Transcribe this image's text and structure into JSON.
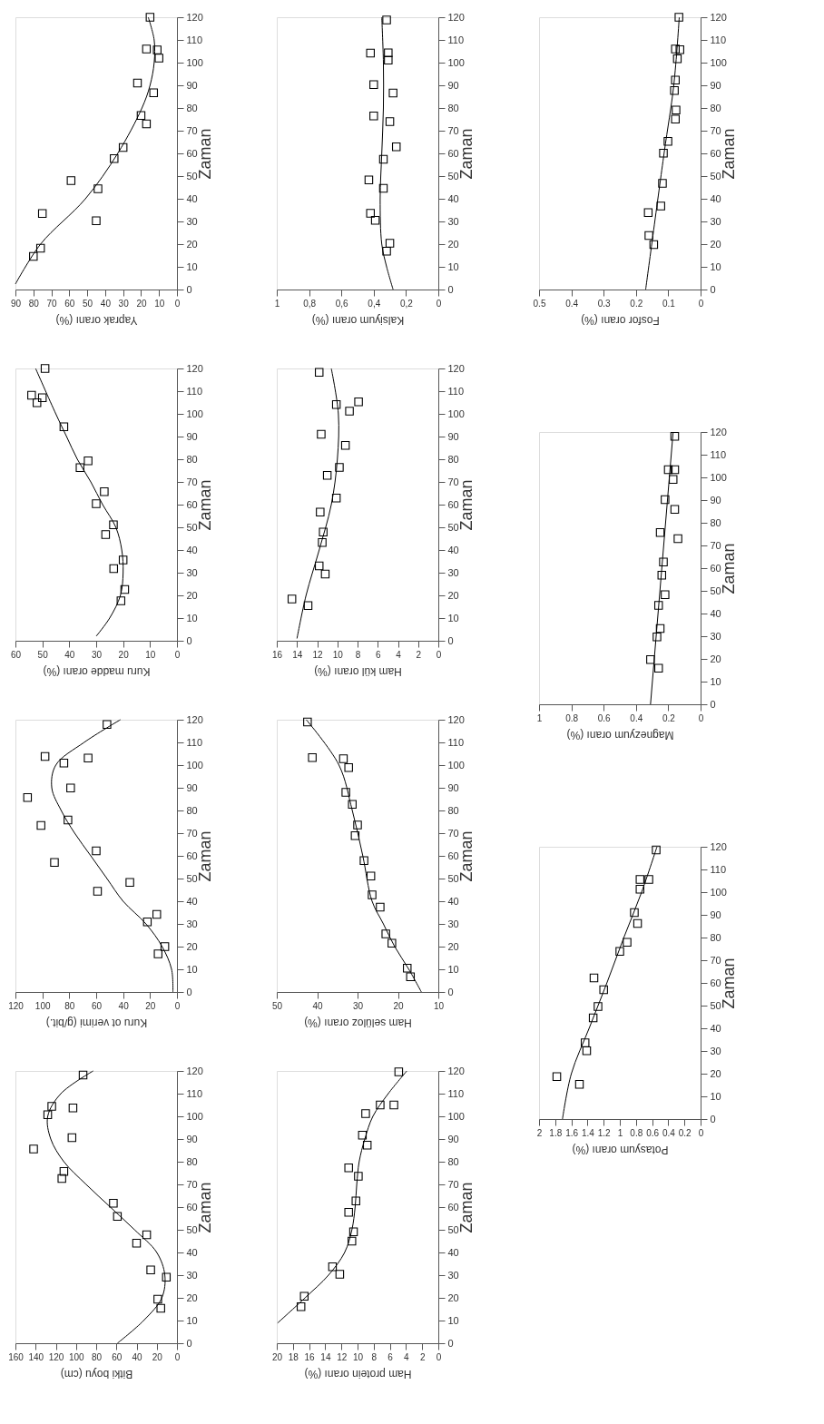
{
  "chart_data": [
    {
      "type": "scatter",
      "ylabel": "Zaman",
      "xlabel": "Yaprak oranı (%)",
      "ylim": [
        0,
        120
      ],
      "yticks": [
        0,
        10,
        20,
        30,
        40,
        50,
        60,
        70,
        80,
        90,
        100,
        110,
        120
      ],
      "xlim": [
        90,
        0
      ],
      "xticks": [
        90,
        80,
        70,
        60,
        50,
        40,
        30,
        20,
        10,
        0
      ],
      "series": [
        {
          "type": "scatter",
          "marker": "square",
          "color": "#000000",
          "values": [
            120,
            106,
            105.6,
            102,
            91,
            86.7,
            76.7,
            73,
            62.6,
            57.7,
            48,
            44.4,
            33.5,
            30.3,
            18.2,
            14.6
          ],
          "x": [
            15,
            17,
            11,
            10,
            22,
            13,
            20,
            17,
            30,
            35,
            59,
            44,
            75,
            45,
            76,
            80
          ]
        },
        {
          "type": "line",
          "color": "#000000",
          "values": [
            2.4,
            20,
            40,
            60,
            80,
            90,
            100,
            110,
            120
          ],
          "x": [
            90,
            76,
            51,
            33,
            19.5,
            15,
            12.7,
            12.7,
            16
          ]
        }
      ]
    },
    {
      "type": "scatter",
      "ylabel": "Zaman",
      "xlabel": "Kuru madde oranı (%)",
      "ylim": [
        0,
        120
      ],
      "yticks": [
        0,
        10,
        20,
        30,
        40,
        50,
        60,
        70,
        80,
        90,
        100,
        110,
        120
      ],
      "xlim": [
        60,
        0
      ],
      "xticks": [
        60,
        50,
        40,
        30,
        20,
        10,
        0
      ],
      "series": [
        {
          "type": "scatter",
          "marker": "square",
          "color": "#000000",
          "values": [
            120,
            108.2,
            104.9,
            107.1,
            94.3,
            79.3,
            76.3,
            65.7,
            60.4,
            51.1,
            46.8,
            35.6,
            31.8,
            22.6,
            17.6
          ],
          "x": [
            49,
            54,
            52,
            50,
            42,
            33,
            36,
            27,
            30,
            23.6,
            26.5,
            20,
            23.5,
            19.4,
            20.8
          ]
        },
        {
          "type": "line",
          "color": "#000000",
          "values": [
            2,
            10,
            20,
            30,
            40,
            50,
            60,
            70,
            80,
            90,
            100,
            120
          ],
          "x": [
            30,
            25,
            21,
            20,
            20.5,
            22.7,
            27.6,
            32,
            37,
            41,
            45,
            52.5
          ]
        }
      ]
    },
    {
      "type": "scatter",
      "ylabel": "Zaman",
      "xlabel": "Kuru ot verimi (g/bit.)",
      "ylim": [
        0,
        120
      ],
      "yticks": [
        0,
        10,
        20,
        30,
        40,
        50,
        60,
        70,
        80,
        90,
        100,
        110,
        120
      ],
      "xlim": [
        120,
        0
      ],
      "xticks": [
        120,
        100,
        80,
        60,
        40,
        20,
        0
      ],
      "series": [
        {
          "type": "scatter",
          "marker": "square",
          "color": "#000000",
          "values": [
            117.9,
            103.8,
            103.1,
            100.9,
            89.9,
            85.7,
            75.8,
            73.4,
            62.2,
            57.1,
            48.3,
            44.4,
            34.2,
            30.9,
            20,
            16.8
          ],
          "x": [
            52,
            98,
            66,
            84,
            79,
            111,
            81,
            101,
            60,
            91,
            35,
            59,
            15,
            22,
            9,
            14
          ]
        },
        {
          "type": "line",
          "color": "#000000",
          "values": [
            0,
            10,
            20,
            30,
            40,
            50,
            60,
            70,
            80,
            90,
            100,
            110,
            120
          ],
          "x": [
            3,
            4,
            11,
            23,
            40,
            52,
            64,
            76,
            86,
            93,
            90,
            69,
            42
          ]
        }
      ]
    },
    {
      "type": "scatter",
      "ylabel": "Zaman",
      "xlabel": "Bitki boyu (cm)",
      "ylim": [
        0,
        120
      ],
      "yticks": [
        0,
        10,
        20,
        30,
        40,
        50,
        60,
        70,
        80,
        90,
        100,
        110,
        120
      ],
      "xlim": [
        160,
        0
      ],
      "xticks": [
        160,
        140,
        120,
        100,
        80,
        60,
        40,
        20,
        0
      ],
      "series": [
        {
          "type": "scatter",
          "marker": "square",
          "color": "#000000",
          "values": [
            118.2,
            104.4,
            103.7,
            100.7,
            90.6,
            85.6,
            75.7,
            72.6,
            61.7,
            55.9,
            47.8,
            44.1,
            32.3,
            29.1,
            19.4,
            15.4
          ],
          "x": [
            93,
            124,
            103,
            128,
            104,
            142,
            112,
            114,
            63,
            59,
            30,
            40,
            26,
            10.5,
            19,
            16
          ]
        },
        {
          "type": "line",
          "color": "#000000",
          "values": [
            0,
            10,
            20,
            30,
            40,
            50,
            60,
            70,
            80,
            90,
            100,
            110,
            120
          ],
          "x": [
            59,
            33,
            15,
            12,
            20,
            42,
            66,
            90,
            112,
            125,
            128,
            115,
            83
          ]
        }
      ]
    },
    {
      "type": "scatter",
      "ylabel": "Zaman",
      "xlabel": "Kalsiyum oranı (%)",
      "ylim": [
        0,
        120
      ],
      "yticks": [
        0,
        10,
        20,
        30,
        40,
        50,
        60,
        70,
        80,
        90,
        100,
        110,
        120
      ],
      "xlim": [
        1,
        0
      ],
      "xticks": [
        1,
        {
          "value": 0.8,
          "label": "0,8"
        },
        {
          "value": 0.6,
          "label": "0,6"
        },
        {
          "value": 0.4,
          "label": "0,4"
        },
        {
          "value": 0.2,
          "label": "0,2"
        },
        0
      ],
      "series": [
        {
          "type": "scatter",
          "marker": "square",
          "color": "#000000",
          "values": [
            118.8,
            104.3,
            104.2,
            101.1,
            90.3,
            86.6,
            76.5,
            74,
            62.9,
            57.4,
            48.3,
            44.6,
            33.6,
            30.5,
            20.4,
            16.9
          ],
          "x": [
            0.32,
            0.31,
            0.42,
            0.31,
            0.4,
            0.28,
            0.4,
            0.3,
            0.26,
            0.34,
            0.43,
            0.34,
            0.42,
            0.39,
            0.3,
            0.32
          ]
        },
        {
          "type": "line",
          "color": "#000000",
          "values": [
            0,
            10,
            20,
            40,
            60,
            80,
            100,
            120
          ],
          "x": [
            0.28,
            0.32,
            0.35,
            0.36,
            0.35,
            0.34,
            0.34,
            0.35
          ]
        }
      ]
    },
    {
      "type": "scatter",
      "ylabel": "Zaman",
      "xlabel": "Ham kül oranı (%)",
      "ylim": [
        0,
        120
      ],
      "yticks": [
        0,
        10,
        20,
        30,
        40,
        50,
        60,
        70,
        80,
        90,
        100,
        110,
        120
      ],
      "xlim": [
        16,
        0
      ],
      "xticks": [
        16,
        14,
        12,
        10,
        8,
        6,
        4,
        2,
        0
      ],
      "series": [
        {
          "type": "scatter",
          "marker": "square",
          "color": "#000000",
          "values": [
            118.3,
            105.3,
            104.1,
            101.2,
            91,
            86.1,
            76.4,
            72.9,
            62.9,
            56.7,
            47.9,
            43.3,
            33,
            29.4,
            18.4,
            15.5
          ],
          "x": [
            11.8,
            7.9,
            10.1,
            8.8,
            11.6,
            9.2,
            9.8,
            11,
            10.1,
            11.7,
            11.4,
            11.5,
            11.8,
            11.2,
            14.5,
            12.9
          ]
        },
        {
          "type": "line",
          "color": "#000000",
          "values": [
            1,
            20,
            40,
            60,
            80,
            100,
            120
          ],
          "x": [
            14,
            13.1,
            11.8,
            10.6,
            10,
            9.9,
            10.6
          ]
        }
      ]
    },
    {
      "type": "scatter",
      "ylabel": "Zaman",
      "xlabel": "Ham selüloz oranı (%)",
      "ylim": [
        0,
        120
      ],
      "yticks": [
        0,
        10,
        20,
        30,
        40,
        50,
        60,
        70,
        80,
        90,
        100,
        110,
        120
      ],
      "xlim": [
        50,
        10
      ],
      "xticks": [
        50,
        40,
        30,
        20,
        10
      ],
      "series": [
        {
          "type": "scatter",
          "marker": "square",
          "color": "#000000",
          "values": [
            119,
            103.3,
            102.8,
            98.9,
            88,
            82.7,
            73.6,
            68.9,
            57.9,
            51.1,
            42.8,
            37.4,
            25.6,
            21.5,
            10.5,
            6.7
          ],
          "x": [
            42.4,
            41.2,
            33.5,
            32.2,
            32.9,
            31.3,
            30,
            30.6,
            28.4,
            26.7,
            26.4,
            24.4,
            23,
            21.5,
            17.7,
            16.9
          ]
        },
        {
          "type": "line",
          "color": "#000000",
          "values": [
            0,
            10,
            20,
            30,
            40,
            60,
            80,
            100,
            120
          ],
          "x": [
            14.2,
            17.3,
            20.8,
            23.6,
            26.4,
            28.7,
            31.3,
            34.6,
            42.7
          ]
        }
      ]
    },
    {
      "type": "scatter",
      "ylabel": "Zaman",
      "xlabel": "Ham protein oranı (%)",
      "ylim": [
        0,
        120
      ],
      "yticks": [
        0,
        10,
        20,
        30,
        40,
        50,
        60,
        70,
        80,
        90,
        100,
        110,
        120
      ],
      "xlim": [
        20,
        0
      ],
      "xticks": [
        20,
        18,
        16,
        14,
        12,
        10,
        8,
        6,
        4,
        2,
        0
      ],
      "series": [
        {
          "type": "scatter",
          "marker": "square",
          "color": "#000000",
          "values": [
            119.6,
            105,
            105,
            101.2,
            91.7,
            87.3,
            77.3,
            73.6,
            62.7,
            57.7,
            49.1,
            45,
            33.7,
            30.4,
            20.7,
            16.1
          ],
          "x": [
            4.9,
            7.2,
            5.5,
            9,
            9.4,
            8.8,
            11.1,
            9.9,
            10.2,
            11.1,
            10.5,
            10.7,
            13.1,
            12.2,
            16.6,
            17
          ]
        },
        {
          "type": "line",
          "color": "#000000",
          "values": [
            8.9,
            20,
            30,
            40,
            50,
            60,
            70,
            80,
            90,
            100,
            110,
            120
          ],
          "x": [
            19.9,
            16.5,
            13.6,
            11.6,
            10.7,
            10.3,
            10.1,
            9.8,
            9.1,
            8.1,
            6.2,
            3.9
          ]
        }
      ]
    },
    {
      "type": "scatter",
      "ylabel": "Zaman",
      "xlabel": "Fosfor oranı (%)",
      "ylim": [
        0,
        120
      ],
      "yticks": [
        0,
        10,
        20,
        30,
        40,
        50,
        60,
        70,
        80,
        90,
        100,
        110,
        120
      ],
      "xlim": [
        0.5,
        0
      ],
      "xticks": [
        0.5,
        0.4,
        0.3,
        0.2,
        0.1,
        0
      ],
      "series": [
        {
          "type": "scatter",
          "marker": "square",
          "color": "#000000",
          "values": [
            120,
            106,
            105.7,
            101.7,
            92.3,
            87.7,
            79.1,
            75.1,
            65.3,
            60.1,
            46.8,
            36.8,
            33.9,
            23.8,
            19.8
          ],
          "x": [
            0.067,
            0.078,
            0.064,
            0.072,
            0.078,
            0.081,
            0.076,
            0.078,
            0.101,
            0.115,
            0.118,
            0.123,
            0.162,
            0.16,
            0.145
          ]
        },
        {
          "type": "line",
          "color": "#000000",
          "values": [
            0,
            60,
            90,
            120
          ],
          "x": [
            0.17,
            0.113,
            0.083,
            0.066
          ]
        }
      ]
    },
    {
      "type": "scatter",
      "ylabel": "Zaman",
      "xlabel": "Magnezyum oranı (%)",
      "ylim": [
        0,
        120
      ],
      "yticks": [
        0,
        10,
        20,
        30,
        40,
        50,
        60,
        70,
        80,
        90,
        100,
        110,
        120
      ],
      "xlim": [
        1,
        0
      ],
      "xticks": [
        1,
        0.8,
        0.6,
        0.4,
        0.2,
        0
      ],
      "series": [
        {
          "type": "scatter",
          "marker": "square",
          "color": "#000000",
          "values": [
            118.1,
            103.4,
            103.4,
            99.1,
            90.2,
            85.9,
            75.7,
            73,
            62.7,
            56.9,
            48.3,
            43.6,
            33.4,
            29.7,
            19.7,
            15.9
          ],
          "x": [
            0.16,
            0.2,
            0.16,
            0.17,
            0.22,
            0.16,
            0.25,
            0.14,
            0.23,
            0.24,
            0.22,
            0.26,
            0.25,
            0.27,
            0.31,
            0.26
          ]
        },
        {
          "type": "line",
          "color": "#000000",
          "values": [
            0,
            120
          ],
          "x": [
            0.31,
            0.17
          ]
        }
      ]
    },
    {
      "type": "scatter",
      "ylabel": "Zaman",
      "xlabel": "Potasyum oranı (%)",
      "ylim": [
        0,
        120
      ],
      "yticks": [
        0,
        10,
        20,
        30,
        40,
        50,
        60,
        70,
        80,
        90,
        100,
        110,
        120
      ],
      "xlim": [
        2,
        0
      ],
      "xticks": [
        2,
        1.8,
        1.6,
        1.4,
        1.2,
        1,
        0.8,
        0.6,
        0.4,
        0.2,
        0
      ],
      "series": [
        {
          "type": "scatter",
          "marker": "square",
          "color": "#000000",
          "values": [
            118.6,
            105.6,
            105.6,
            101.3,
            91,
            86.2,
            77.9,
            73.9,
            62.2,
            57,
            49.6,
            44.6,
            33.6,
            30.1,
            18.7,
            15.3
          ],
          "x": [
            0.55,
            0.64,
            0.75,
            0.75,
            0.82,
            0.78,
            0.91,
            1.0,
            1.32,
            1.2,
            1.27,
            1.33,
            1.43,
            1.41,
            1.78,
            1.5
          ]
        },
        {
          "type": "line",
          "color": "#000000",
          "values": [
            0,
            20,
            40,
            60,
            80,
            100,
            120
          ],
          "x": [
            1.71,
            1.6,
            1.38,
            1.16,
            0.95,
            0.73,
            0.54
          ]
        }
      ]
    }
  ]
}
